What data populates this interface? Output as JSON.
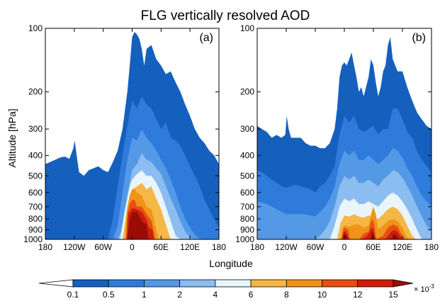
{
  "chart_data": {
    "type": "area",
    "title": "FLG vertically resolved AOD",
    "xlabel": "Longitude",
    "ylabel": "Altitude [hPa]",
    "x_ticks": [
      "180",
      "120W",
      "60W",
      "0",
      "60E",
      "120E",
      "180"
    ],
    "x_tick_values": [
      -180,
      -120,
      -60,
      0,
      60,
      120,
      180
    ],
    "y_ticks": [
      "100",
      "200",
      "300",
      "400",
      "500",
      "600",
      "700",
      "800",
      "900",
      "1000"
    ],
    "y_tick_values": [
      100,
      200,
      300,
      400,
      500,
      600,
      700,
      800,
      900,
      1000
    ],
    "xlim": [
      -180,
      180
    ],
    "ylim": [
      1000,
      100
    ],
    "y_scale": "log",
    "colorbar": {
      "levels": [
        "0.1",
        "0.5",
        "1",
        "2",
        "4",
        "6",
        "8",
        "10",
        "12",
        "15"
      ],
      "unit": "× 10",
      "unit_exp": "-3",
      "colors": [
        "#ffffff",
        "#1560bd",
        "#2f7bdb",
        "#5499e6",
        "#8bbdf0",
        "#e9f5fb",
        "#f5b745",
        "#ef9419",
        "#e74e14",
        "#cc1e0a",
        "#9b0c07"
      ]
    },
    "panels": [
      {
        "label": "(a)",
        "contours": [
          {
            "level": "0.1",
            "x": [
              -180,
              -170,
              -160,
              -150,
              -140,
              -130,
              -122,
              -119,
              -115,
              -110,
              -100,
              -90,
              -80,
              -70,
              -60,
              -50,
              -40,
              -30,
              -20,
              -10,
              -5,
              0,
              5,
              10,
              15,
              20,
              25,
              30,
              40,
              50,
              60,
              70,
              80,
              90,
              100,
              110,
              120,
              130,
              140,
              150,
              160,
              170,
              180
            ],
            "y": [
              440,
              430,
              420,
              410,
              405,
              415,
              370,
              340,
              400,
              480,
              500,
              470,
              460,
              450,
              470,
              480,
              430,
              380,
              300,
              200,
              150,
              110,
              104,
              107,
              112,
              125,
              150,
              125,
              120,
              140,
              150,
              165,
              160,
              180,
              200,
              230,
              260,
              300,
              330,
              350,
              380,
              400,
              440
            ]
          },
          {
            "level": "0.5",
            "x": [
              -50,
              -40,
              -30,
              -20,
              -10,
              0,
              10,
              20,
              30,
              40,
              50,
              60,
              70,
              80,
              90,
              100,
              110,
              120,
              130,
              140,
              150,
              160,
              170,
              180
            ],
            "y": [
              1000,
              800,
              560,
              400,
              290,
              220,
              240,
              210,
              230,
              240,
              270,
              300,
              280,
              330,
              340,
              360,
              400,
              450,
              500,
              560,
              650,
              720,
              800,
              880
            ]
          },
          {
            "level": "1",
            "x": [
              -40,
              -30,
              -20,
              -10,
              0,
              10,
              20,
              30,
              40,
              50,
              60,
              70,
              80,
              90,
              100,
              110,
              120,
              130,
              140,
              150
            ],
            "y": [
              1000,
              860,
              600,
              420,
              330,
              340,
              300,
              330,
              350,
              380,
              420,
              460,
              520,
              600,
              700,
              800,
              880,
              950,
              990,
              1000
            ]
          },
          {
            "level": "2",
            "x": [
              -30,
              -20,
              -10,
              0,
              10,
              20,
              30,
              40,
              50,
              60,
              70,
              80,
              90,
              100,
              110,
              120,
              130
            ],
            "y": [
              1000,
              880,
              620,
              470,
              440,
              390,
              420,
              430,
              460,
              490,
              560,
              640,
              720,
              820,
              920,
              980,
              1000
            ]
          },
          {
            "level": "4",
            "x": [
              -25,
              -15,
              -5,
              0,
              10,
              20,
              30,
              40,
              50,
              60,
              70,
              80,
              90,
              100
            ],
            "y": [
              1000,
              720,
              560,
              520,
              490,
              470,
              500,
              500,
              540,
              600,
              700,
              820,
              960,
              1000
            ]
          },
          {
            "level": "6",
            "x": [
              -20,
              -10,
              -5,
              0,
              10,
              20,
              30,
              40,
              50,
              60,
              70,
              80
            ],
            "y": [
              1000,
              700,
              620,
              580,
              560,
              540,
              580,
              560,
              640,
              720,
              850,
              1000
            ]
          },
          {
            "level": "8",
            "x": [
              -15,
              -10,
              -5,
              0,
              5,
              10,
              20,
              30,
              40,
              50,
              55
            ],
            "y": [
              1000,
              720,
              620,
              580,
              575,
              600,
              620,
              700,
              720,
              900,
              1000
            ]
          },
          {
            "level": "10",
            "x": [
              -13,
              -10,
              -5,
              0,
              5,
              10,
              20,
              30,
              40,
              48
            ],
            "y": [
              1000,
              760,
              680,
              650,
              650,
              700,
              700,
              760,
              820,
              1000
            ]
          },
          {
            "level": "12",
            "x": [
              -11,
              -8,
              0,
              10,
              20,
              30,
              35,
              42,
              45
            ],
            "y": [
              1000,
              760,
              710,
              720,
              740,
              810,
              880,
              900,
              1000
            ]
          },
          {
            "level": "15",
            "x": [
              -10,
              -5,
              0,
              10,
              20,
              30,
              34
            ],
            "y": [
              1000,
              800,
              740,
              740,
              820,
              850,
              1000
            ]
          }
        ]
      },
      {
        "label": "(b)",
        "contours": [
          {
            "level": "0.1",
            "x": [
              -180,
              -170,
              -160,
              -150,
              -140,
              -130,
              -122,
              -119,
              -115,
              -110,
              -100,
              -90,
              -80,
              -70,
              -60,
              -50,
              -40,
              -30,
              -20,
              -15,
              -10,
              -5,
              0,
              5,
              10,
              15,
              20,
              25,
              30,
              35,
              40,
              50,
              55,
              60,
              65,
              70,
              75,
              80,
              85,
              90,
              95,
              100,
              110,
              120,
              130,
              140,
              150,
              160,
              170,
              180
            ],
            "y": [
              290,
              300,
              310,
              330,
              320,
              330,
              320,
              260,
              300,
              330,
              330,
              330,
              350,
              360,
              360,
              370,
              370,
              350,
              300,
              240,
              170,
              150,
              145,
              150,
              140,
              130,
              150,
              170,
              200,
              190,
              210,
              170,
              140,
              150,
              180,
              210,
              190,
              160,
              150,
              120,
              110,
              140,
              160,
              160,
              190,
              220,
              250,
              270,
              290,
              300
            ]
          },
          {
            "level": "0.5",
            "x": [
              -180,
              -170,
              -160,
              -150,
              -140,
              -130,
              -120,
              -110,
              -100,
              -90,
              -80,
              -70,
              -60,
              -50,
              -40,
              -30,
              -20,
              -10,
              0,
              10,
              20,
              30,
              40,
              50,
              60,
              70,
              80,
              90,
              100,
              110,
              120,
              130,
              140,
              150,
              160,
              170,
              180
            ],
            "y": [
              470,
              480,
              500,
              520,
              540,
              560,
              570,
              560,
              550,
              560,
              570,
              580,
              600,
              560,
              540,
              500,
              450,
              320,
              260,
              280,
              260,
              300,
              310,
              300,
              290,
              320,
              300,
              300,
              240,
              240,
              270,
              310,
              330,
              380,
              420,
              450,
              480
            ]
          },
          {
            "level": "1",
            "x": [
              -180,
              -160,
              -140,
              -120,
              -100,
              -80,
              -60,
              -50,
              -40,
              -30,
              -20,
              -10,
              0,
              10,
              20,
              30,
              40,
              50,
              60,
              70,
              80,
              90,
              100,
              110,
              120,
              130,
              140,
              150,
              160,
              170,
              180
            ],
            "y": [
              660,
              680,
              720,
              760,
              760,
              760,
              780,
              740,
              700,
              640,
              560,
              440,
              380,
              400,
              380,
              420,
              420,
              400,
              420,
              440,
              420,
              400,
              370,
              380,
              410,
              460,
              500,
              560,
              620,
              660,
              700
            ]
          },
          {
            "level": "2",
            "x": [
              -60,
              -50,
              -40,
              -30,
              -20,
              -10,
              0,
              10,
              20,
              30,
              40,
              50,
              60,
              70,
              80,
              90,
              100,
              110,
              120,
              130,
              140,
              150,
              160,
              170,
              180
            ],
            "y": [
              1000,
              960,
              900,
              820,
              700,
              560,
              500,
              520,
              500,
              540,
              540,
              520,
              540,
              560,
              520,
              500,
              470,
              480,
              510,
              560,
              620,
              700,
              780,
              860,
              920
            ]
          },
          {
            "level": "4",
            "x": [
              -30,
              -20,
              -10,
              0,
              10,
              20,
              30,
              40,
              50,
              60,
              70,
              80,
              90,
              100,
              110,
              120,
              130,
              140,
              150,
              160
            ],
            "y": [
              1000,
              860,
              700,
              640,
              660,
              640,
              680,
              680,
              660,
              680,
              700,
              660,
              620,
              600,
              620,
              660,
              720,
              800,
              900,
              1000
            ]
          },
          {
            "level": "6",
            "x": [
              -15,
              -8,
              0,
              10,
              20,
              30,
              40,
              50,
              60,
              70,
              80,
              90,
              100,
              110,
              120,
              130,
              140,
              148
            ],
            "y": [
              1000,
              840,
              770,
              780,
              760,
              780,
              790,
              770,
              780,
              800,
              760,
              720,
              700,
              720,
              770,
              860,
              960,
              1000
            ]
          },
          {
            "level": "8",
            "x": [
              -8,
              -4,
              0,
              10,
              20,
              30,
              40,
              50,
              55,
              60,
              65,
              70,
              80,
              90,
              100,
              110,
              120,
              125,
              130,
              135
            ],
            "y": [
              1000,
              880,
              860,
              870,
              850,
              850,
              880,
              860,
              760,
              700,
              760,
              900,
              860,
              820,
              800,
              820,
              880,
              940,
              980,
              1000
            ]
          },
          {
            "level": "10",
            "x": [
              -6,
              -2,
              0,
              8,
              12,
              30,
              40,
              50,
              54,
              58,
              62,
              66,
              80,
              90,
              100,
              110,
              116,
              122,
              128
            ],
            "y": [
              1000,
              900,
              880,
              900,
              1000,
              1000,
              940,
              920,
              840,
              800,
              860,
              1000,
              960,
              880,
              850,
              870,
              930,
              980,
              1000
            ]
          },
          {
            "level": "12",
            "x": [
              -5,
              -2,
              2,
              6,
              10,
              35,
              45,
              52,
              56,
              60,
              64,
              84,
              95,
              102,
              110,
              115,
              120
            ],
            "y": [
              1000,
              930,
              910,
              950,
              1000,
              1000,
              970,
              930,
              880,
              900,
              1000,
              1000,
              930,
              900,
              920,
              960,
              1000
            ]
          },
          {
            "level": "15",
            "x": [
              -3,
              0,
              4,
              7,
              54,
              57,
              60,
              62,
              96,
              102,
              108,
              112
            ],
            "y": [
              1000,
              940,
              950,
              1000,
              1000,
              920,
              940,
              1000,
              1000,
              940,
              960,
              1000
            ]
          }
        ]
      }
    ]
  }
}
